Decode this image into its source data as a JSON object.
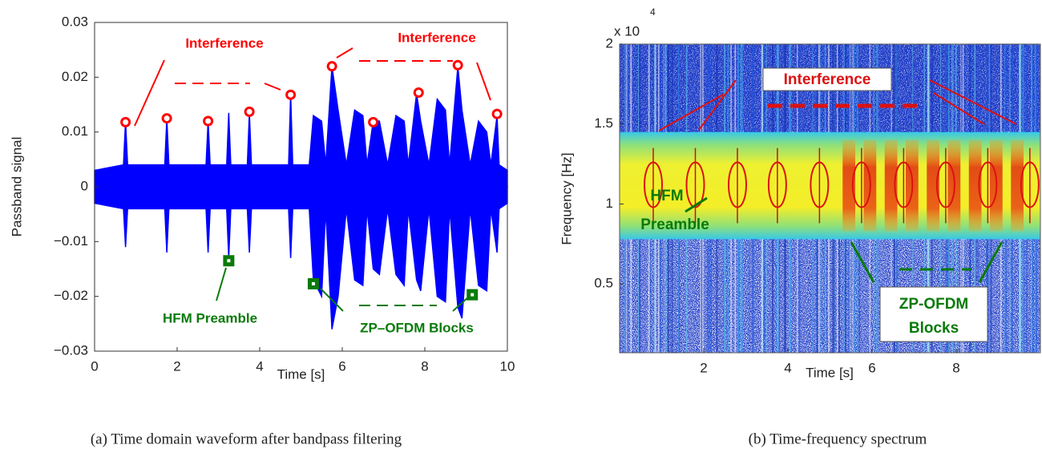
{
  "chart_data": [
    {
      "type": "area",
      "caption": "(a) Time domain waveform after bandpass filtering",
      "xlabel": "Time [s]",
      "ylabel": "Passband signal",
      "xlim": [
        0,
        10
      ],
      "ylim": [
        -0.03,
        0.03
      ],
      "xticks": [
        0,
        2,
        4,
        6,
        8,
        10
      ],
      "yticks": [
        {
          "value": -0.03,
          "label": "−0.03"
        },
        {
          "value": -0.02,
          "label": "−0.02"
        },
        {
          "value": -0.01,
          "label": "−0.01"
        },
        0,
        0.01,
        0.02,
        0.03
      ],
      "x": [
        0,
        0.7,
        0.75,
        0.8,
        1.7,
        1.75,
        1.8,
        2.7,
        2.75,
        2.8,
        3.2,
        3.25,
        3.3,
        3.7,
        3.75,
        3.8,
        4.7,
        4.75,
        4.8,
        5.2,
        5.3,
        5.5,
        5.6,
        5.75,
        5.9,
        6.1,
        6.3,
        6.5,
        6.6,
        6.75,
        6.9,
        7.1,
        7.3,
        7.5,
        7.6,
        7.8,
        7.9,
        8.1,
        8.3,
        8.5,
        8.6,
        8.8,
        8.9,
        9.1,
        9.3,
        9.5,
        9.6,
        9.75,
        9.8,
        10
      ],
      "series": [
        {
          "color": "#0000ff",
          "values": [
            0.003,
            0.004,
            0.012,
            0.004,
            0.004,
            0.0125,
            0.004,
            0.004,
            0.012,
            0.004,
            0.004,
            0.0135,
            0.004,
            0.004,
            0.0135,
            0.004,
            0.004,
            0.017,
            0.004,
            0.004,
            0.013,
            0.012,
            0.004,
            0.022,
            0.014,
            0.004,
            0.014,
            0.013,
            0.004,
            0.012,
            0.012,
            0.004,
            0.013,
            0.012,
            0.004,
            0.017,
            0.012,
            0.004,
            0.016,
            0.014,
            0.004,
            0.022,
            0.014,
            0.004,
            0.012,
            0.01,
            0.004,
            0.013,
            0.004,
            0.003
          ]
        },
        {
          "color": "#0000ff",
          "values": [
            -0.003,
            -0.004,
            -0.011,
            -0.004,
            -0.004,
            -0.012,
            -0.004,
            -0.004,
            -0.012,
            -0.004,
            -0.004,
            -0.013,
            -0.004,
            -0.004,
            -0.012,
            -0.004,
            -0.004,
            -0.013,
            -0.004,
            -0.004,
            -0.017,
            -0.02,
            -0.004,
            -0.026,
            -0.02,
            -0.004,
            -0.017,
            -0.018,
            -0.004,
            -0.015,
            -0.016,
            -0.004,
            -0.016,
            -0.018,
            -0.004,
            -0.017,
            -0.019,
            -0.004,
            -0.02,
            -0.021,
            -0.004,
            -0.022,
            -0.024,
            -0.004,
            -0.018,
            -0.019,
            -0.004,
            -0.012,
            -0.004,
            -0.003
          ]
        }
      ],
      "interference_points": {
        "color": "#ff0000",
        "x": [
          0.75,
          1.75,
          2.75,
          3.75,
          4.75,
          5.75,
          6.75,
          7.85,
          8.8,
          9.75
        ],
        "y": [
          0.0118,
          0.0125,
          0.012,
          0.0137,
          0.0168,
          0.022,
          0.0118,
          0.0172,
          0.0222,
          0.0133
        ]
      },
      "block_points": {
        "color": "#0a7a0a",
        "x": [
          3.25,
          5.3,
          9.15
        ],
        "y": [
          -0.0135,
          -0.0177,
          -0.0197
        ]
      },
      "annotations": [
        {
          "text": "Interference",
          "color": "#ff0000"
        },
        {
          "text": "Interference",
          "color": "#ff0000"
        },
        {
          "text": "HFM Preamble",
          "color": "#0a7a0a"
        },
        {
          "text": "ZP–OFDM Blocks",
          "color": "#0a7a0a"
        }
      ]
    },
    {
      "type": "spectrogram",
      "caption": "(b) Time-frequency spectrum",
      "xlabel": "Time [s]",
      "ylabel": "Frequency [Hz]",
      "scale_label": "x 10",
      "scale_exponent": "4",
      "xlim": [
        0,
        10
      ],
      "ylim": [
        0.07,
        2
      ],
      "xticks": [
        2,
        4,
        6,
        8
      ],
      "yticks": [
        0.5,
        1,
        1.5,
        2
      ],
      "signal_band": [
        0.78,
        1.45
      ],
      "interference_times": [
        0.8,
        1.8,
        2.8,
        3.75,
        4.75,
        5.75,
        6.75,
        7.75,
        8.75,
        9.75
      ],
      "ofdm_blocks": [
        5.3,
        5.8,
        6.3,
        6.8,
        7.3,
        7.8,
        8.3,
        8.8,
        9.3
      ],
      "annotations": [
        {
          "text": "Interference",
          "color": "#dd1111"
        },
        {
          "text": "HFM",
          "color": "#0a7a0a"
        },
        {
          "text": "Preamble",
          "color": "#0a7a0a"
        },
        {
          "text": "ZP-OFDM",
          "color": "#0a7a0a"
        },
        {
          "text": "Blocks",
          "color": "#0a7a0a"
        }
      ]
    }
  ]
}
